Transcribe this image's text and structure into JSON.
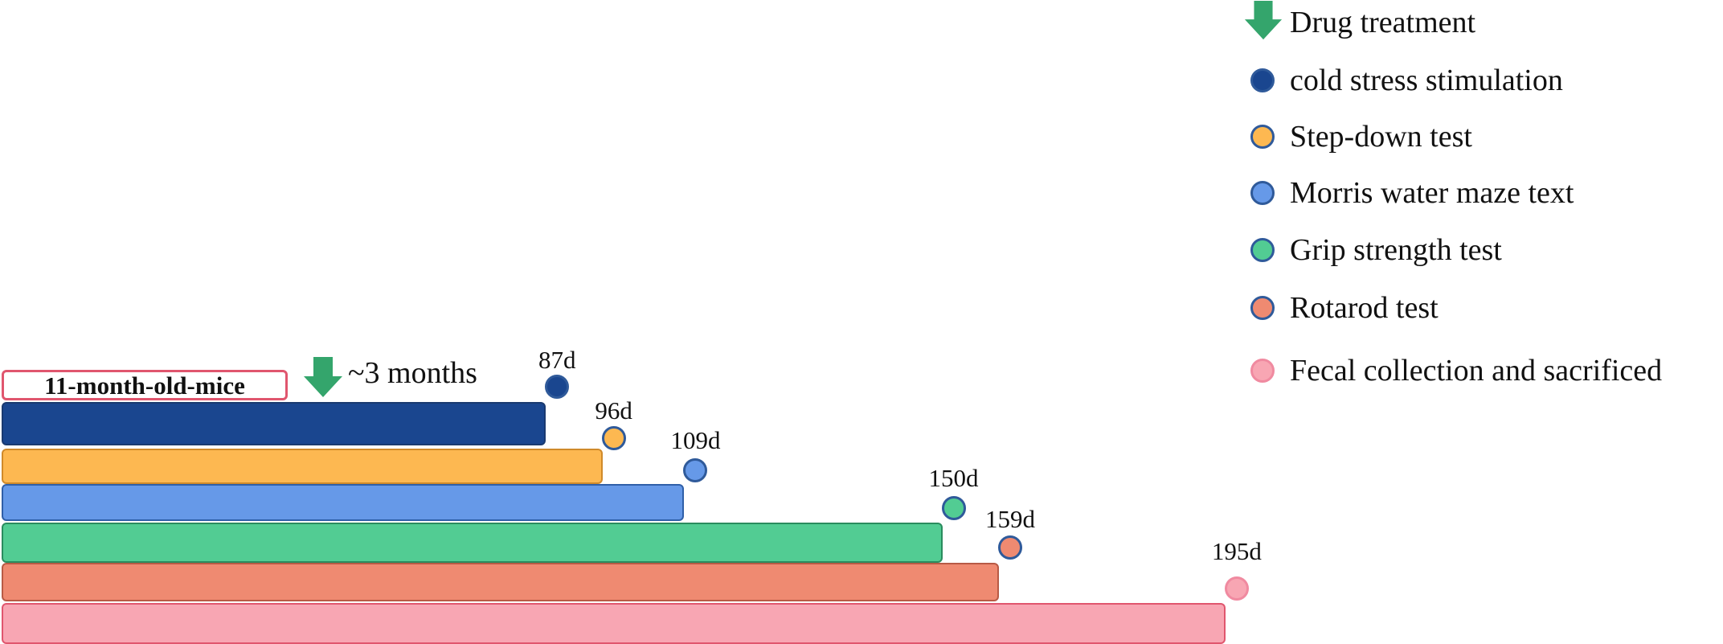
{
  "legend": [
    {
      "label": "Drug treatment",
      "icon": "down-arrow-icon",
      "color": "#34a56c"
    },
    {
      "label": "cold stress stimulation",
      "color": "#1a468f"
    },
    {
      "label": "Step-down test",
      "color": "#fdb851"
    },
    {
      "label": "Morris water maze text",
      "color": "#6699e8"
    },
    {
      "label": "Grip strength test",
      "color": "#52cc93"
    },
    {
      "label": "Rotarod test",
      "color": "#ef8a71"
    },
    {
      "label": "Fecal collection and sacrificed",
      "color": "#f8a6b3"
    }
  ],
  "start_label": "11-month-old-mice",
  "treatment_label": "~3 months",
  "timeline": [
    {
      "event": "cold stress stimulation",
      "day": 87,
      "label": "87d",
      "color": "#1a468f",
      "border": "#1a3a70"
    },
    {
      "event": "Step-down test",
      "day": 96,
      "label": "96d",
      "color": "#fdb851",
      "border": "#d08a2a"
    },
    {
      "event": "Morris water maze text",
      "day": 109,
      "label": "109d",
      "color": "#6699e8",
      "border": "#2f5fa8"
    },
    {
      "event": "Grip strength test",
      "day": 150,
      "label": "150d",
      "color": "#52cc93",
      "border": "#2a8c5e"
    },
    {
      "event": "Rotarod test",
      "day": 159,
      "label": "159d",
      "color": "#ef8a71",
      "border": "#b85a45"
    },
    {
      "event": "Fecal collection and sacrificed",
      "day": 195,
      "label": "195d",
      "color": "#f8a6b3",
      "border": "#e0566e"
    }
  ]
}
